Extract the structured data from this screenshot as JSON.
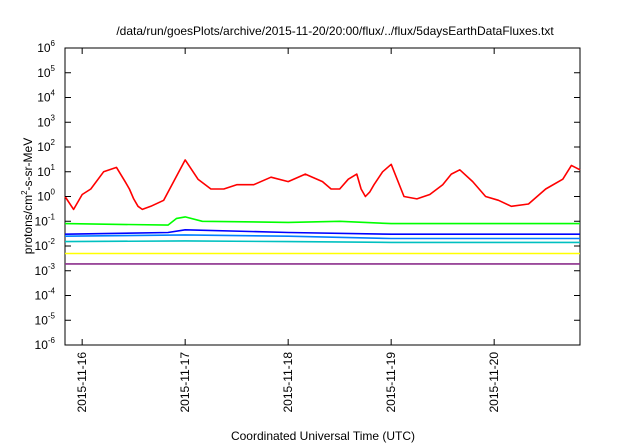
{
  "chart_data": {
    "type": "line",
    "title": "/data/run/goesPlots/archive/2015-11-20/20:00/flux/../flux/5daysEarthDataFluxes.txt",
    "xlabel": "Coordinated Universal Time (UTC)",
    "ylabel": {
      "base": "protons/cm",
      "sup": "2",
      "rest": "-s-sr-MeV"
    },
    "x_scale": "time",
    "xlim": [
      "2015-11-15T20:00",
      "2015-11-20T20:00"
    ],
    "y_scale": "log",
    "ylim": [
      1e-06,
      1000000.0
    ],
    "y_ticks": [
      {
        "base": "10",
        "exp": "-6",
        "value": -6
      },
      {
        "base": "10",
        "exp": "-5",
        "value": -5
      },
      {
        "base": "10",
        "exp": "-4",
        "value": -4
      },
      {
        "base": "10",
        "exp": "-3",
        "value": -3
      },
      {
        "base": "10",
        "exp": "-2",
        "value": -2
      },
      {
        "base": "10",
        "exp": "-1",
        "value": -1
      },
      {
        "base": "10",
        "exp": "0",
        "value": 0
      },
      {
        "base": "10",
        "exp": "1",
        "value": 1
      },
      {
        "base": "10",
        "exp": "2",
        "value": 2
      },
      {
        "base": "10",
        "exp": "3",
        "value": 3
      },
      {
        "base": "10",
        "exp": "4",
        "value": 4
      },
      {
        "base": "10",
        "exp": "5",
        "value": 5
      },
      {
        "base": "10",
        "exp": "6",
        "value": 6
      }
    ],
    "x_ticks": [
      "2015-11-16",
      "2015-11-17",
      "2015-11-18",
      "2015-11-19",
      "2015-11-20"
    ],
    "grid": false,
    "series": [
      {
        "color": "#ff0000",
        "x": [
          "2015-11-15T20:00",
          "2015-11-15T22:00",
          "2015-11-16T00:00",
          "2015-11-16T02:00",
          "2015-11-16T05:00",
          "2015-11-16T08:00",
          "2015-11-16T10:00",
          "2015-11-16T11:00",
          "2015-11-16T12:00",
          "2015-11-16T13:00",
          "2015-11-16T14:00",
          "2015-11-16T16:00",
          "2015-11-16T19:00",
          "2015-11-17T00:00",
          "2015-11-17T03:00",
          "2015-11-17T06:00",
          "2015-11-17T09:00",
          "2015-11-17T12:00",
          "2015-11-17T16:00",
          "2015-11-17T20:00",
          "2015-11-18T00:00",
          "2015-11-18T04:00",
          "2015-11-18T08:00",
          "2015-11-18T10:00",
          "2015-11-18T12:00",
          "2015-11-18T14:00",
          "2015-11-18T16:00",
          "2015-11-18T17:00",
          "2015-11-18T18:00",
          "2015-11-18T19:00",
          "2015-11-18T20:00",
          "2015-11-18T22:00",
          "2015-11-19T00:00",
          "2015-11-19T03:00",
          "2015-11-19T06:00",
          "2015-11-19T09:00",
          "2015-11-19T12:00",
          "2015-11-19T14:00",
          "2015-11-19T16:00",
          "2015-11-19T19:00",
          "2015-11-19T22:00",
          "2015-11-20T01:00",
          "2015-11-20T04:00",
          "2015-11-20T08:00",
          "2015-11-20T12:00",
          "2015-11-20T16:00",
          "2015-11-20T18:00",
          "2015-11-20T20:00"
        ],
        "values": [
          1.0,
          0.3,
          1.2,
          2,
          10,
          15,
          4,
          2,
          0.8,
          0.4,
          0.3,
          0.4,
          0.7,
          30,
          5,
          2,
          2,
          3,
          3,
          6,
          4,
          8,
          4,
          2,
          2,
          5,
          8,
          2,
          1,
          1.5,
          3,
          10,
          20,
          1,
          0.8,
          1.2,
          3,
          8,
          12,
          4,
          1,
          0.7,
          0.4,
          0.5,
          2,
          5,
          18,
          12
        ]
      },
      {
        "color": "#00ff00",
        "x": [
          "2015-11-15T20:00",
          "2015-11-16T20:00",
          "2015-11-16T22:00",
          "2015-11-17T00:00",
          "2015-11-17T04:00",
          "2015-11-18T00:00",
          "2015-11-18T12:00",
          "2015-11-19T00:00",
          "2015-11-20T00:00",
          "2015-11-20T20:00"
        ],
        "values": [
          0.08,
          0.07,
          0.13,
          0.15,
          0.1,
          0.09,
          0.1,
          0.08,
          0.08,
          0.08
        ]
      },
      {
        "color": "#0000ff",
        "x": [
          "2015-11-15T20:00",
          "2015-11-16T20:00",
          "2015-11-17T00:00",
          "2015-11-18T00:00",
          "2015-11-19T00:00",
          "2015-11-20T00:00",
          "2015-11-20T20:00"
        ],
        "values": [
          0.03,
          0.035,
          0.045,
          0.035,
          0.03,
          0.03,
          0.03
        ]
      },
      {
        "color": "#0080ff",
        "x": [
          "2015-11-15T20:00",
          "2015-11-17T00:00",
          "2015-11-18T00:00",
          "2015-11-19T00:00",
          "2015-11-20T20:00"
        ],
        "values": [
          0.025,
          0.028,
          0.025,
          0.02,
          0.02
        ]
      },
      {
        "color": "#00c0c0",
        "x": [
          "2015-11-15T20:00",
          "2015-11-17T00:00",
          "2015-11-18T00:00",
          "2015-11-19T00:00",
          "2015-11-20T20:00"
        ],
        "values": [
          0.015,
          0.016,
          0.015,
          0.014,
          0.014
        ]
      },
      {
        "color": "#ffff00",
        "x": [
          "2015-11-15T20:00",
          "2015-11-17T00:00",
          "2015-11-18T00:00",
          "2015-11-19T00:00",
          "2015-11-20T20:00"
        ],
        "values": [
          0.005,
          0.005,
          0.005,
          0.005,
          0.005
        ]
      },
      {
        "color": "#8b2f8b",
        "x": [
          "2015-11-15T20:00",
          "2015-11-17T00:00",
          "2015-11-18T00:00",
          "2015-11-19T00:00",
          "2015-11-20T20:00"
        ],
        "values": [
          0.0019,
          0.0019,
          0.0019,
          0.0019,
          0.0019
        ]
      }
    ]
  }
}
